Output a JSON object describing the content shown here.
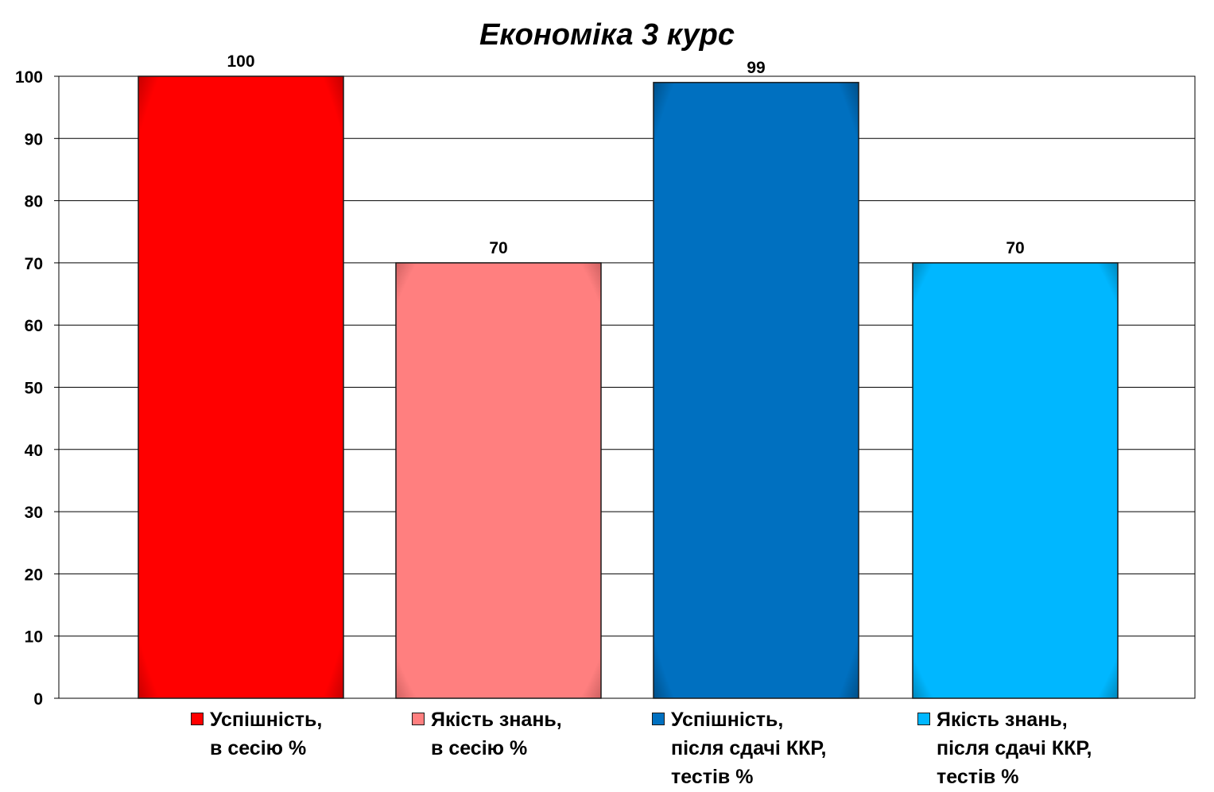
{
  "chart_data": {
    "type": "bar",
    "title": "Економіка 3 курс",
    "xlabel": "",
    "ylabel": "",
    "ylim": [
      0,
      100
    ],
    "yticks": [
      0,
      10,
      20,
      30,
      40,
      50,
      60,
      70,
      80,
      90,
      100
    ],
    "grid": true,
    "legend_position": "bottom",
    "categories": [
      ""
    ],
    "series": [
      {
        "name": "Успішність,\nв сесію %",
        "values": [
          100
        ],
        "color": "#ff0000"
      },
      {
        "name": "Якість знань,\nв сесію %",
        "values": [
          70
        ],
        "color": "#ff7f7f"
      },
      {
        "name": "Успішність,\nпісля сдачі ККР,\nтестів %",
        "values": [
          99
        ],
        "color": "#0070c0"
      },
      {
        "name": "Якість знань,\nпісля сдачі ККР,\nтестів %",
        "values": [
          70
        ],
        "color": "#00b7ff"
      }
    ],
    "data_labels": [
      "100",
      "70",
      "99",
      "70"
    ]
  }
}
